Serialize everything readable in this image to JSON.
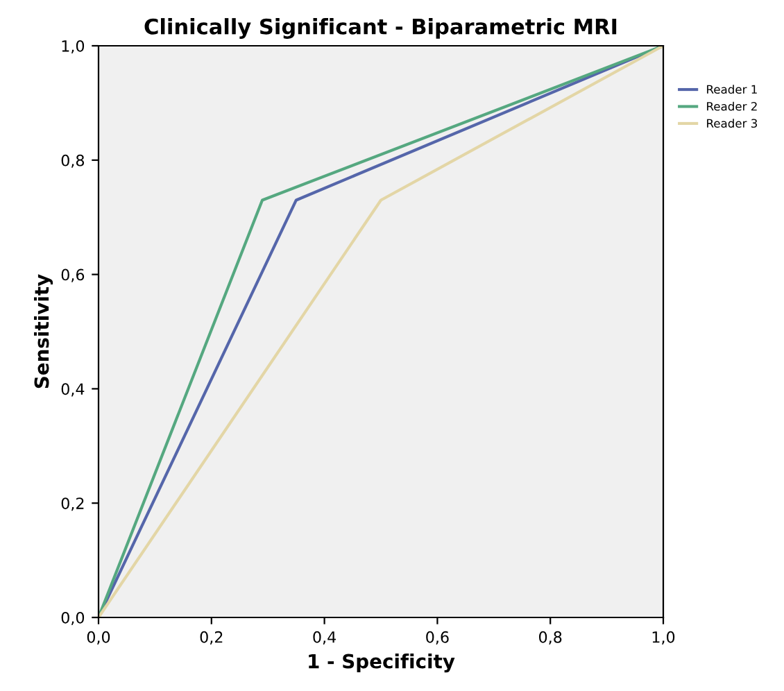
{
  "chart_data": {
    "type": "line",
    "title": "Clinically Significant - Biparametric MRI",
    "xlabel": "1 - Specificity",
    "ylabel": "Sensitivity",
    "xlim": [
      0,
      1
    ],
    "ylim": [
      0,
      1
    ],
    "xticks": [
      {
        "value": 0,
        "label": "0,0"
      },
      {
        "value": 0.2,
        "label": "0,2"
      },
      {
        "value": 0.4,
        "label": "0,4"
      },
      {
        "value": 0.6,
        "label": "0,6"
      },
      {
        "value": 0.8,
        "label": "0,8"
      },
      {
        "value": 1,
        "label": "1,0"
      }
    ],
    "yticks": [
      {
        "value": 0,
        "label": "0,0"
      },
      {
        "value": 0.2,
        "label": "0,2"
      },
      {
        "value": 0.4,
        "label": "0,4"
      },
      {
        "value": 0.6,
        "label": "0,6"
      },
      {
        "value": 0.8,
        "label": "0,8"
      },
      {
        "value": 1,
        "label": "1,0"
      }
    ],
    "grid": false,
    "legend": "top right",
    "marker": "none",
    "line_style": "solid",
    "series": [
      {
        "name": "Reader 1",
        "color": "#5566aa",
        "x": [
          0,
          0.35,
          1
        ],
        "values": [
          0,
          0.73,
          1
        ]
      },
      {
        "name": "Reader 2",
        "color": "#55a880",
        "x": [
          0,
          0.29,
          1
        ],
        "values": [
          0,
          0.73,
          1
        ]
      },
      {
        "name": "Reader 3",
        "color": "#e3d6a6",
        "x": [
          0,
          0.5,
          1
        ],
        "values": [
          0,
          0.73,
          1
        ]
      }
    ]
  }
}
